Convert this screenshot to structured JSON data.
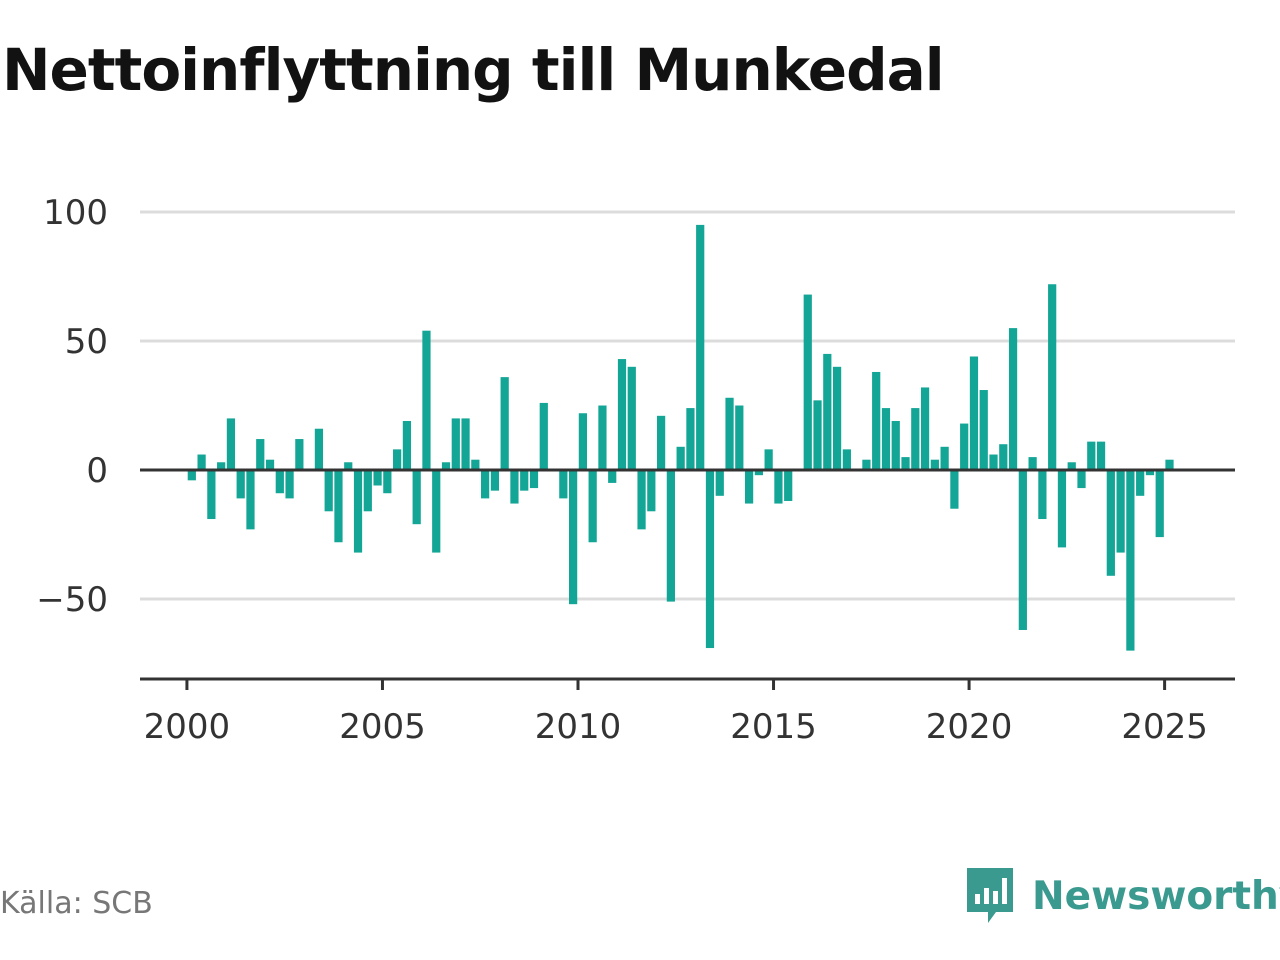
{
  "title": "Nettoinflyttning till Munkedal",
  "source": "Källa: SCB",
  "brand": {
    "name": "Newsworthy",
    "icon": "newsworthy-logo-icon",
    "color": "#3a9a8f"
  },
  "colors": {
    "bar": "#13a596",
    "grid": "#dcdcdc",
    "axis": "#333333"
  },
  "chart_data": {
    "type": "bar",
    "title": "Nettoinflyttning till Munkedal",
    "xlabel": "",
    "ylabel": "",
    "xlim": [
      1998.8,
      2026.8
    ],
    "ylim": [
      -81,
      100
    ],
    "grid": true,
    "legend": "none",
    "x_ticks": [
      2000,
      2005,
      2010,
      2015,
      2020,
      2025
    ],
    "y_ticks": [
      100,
      50,
      0,
      -50
    ],
    "y_tick_labels": [
      "100",
      "50",
      "0",
      "−50"
    ],
    "series": [
      {
        "x": [
          2000.125,
          2000.375,
          2000.625,
          2000.875,
          2001.125,
          2001.375,
          2001.625,
          2001.875,
          2002.125,
          2002.375,
          2002.625,
          2002.875,
          2003.125,
          2003.375,
          2003.625,
          2003.875,
          2004.125,
          2004.375,
          2004.625,
          2004.875,
          2005.125,
          2005.375,
          2005.625,
          2005.875,
          2006.125,
          2006.375,
          2006.625,
          2006.875,
          2007.125,
          2007.375,
          2007.625,
          2007.875,
          2008.125,
          2008.375,
          2008.625,
          2008.875,
          2009.125,
          2009.375,
          2009.625,
          2009.875,
          2010.125,
          2010.375,
          2010.625,
          2010.875,
          2011.125,
          2011.375,
          2011.625,
          2011.875,
          2012.125,
          2012.375,
          2012.625,
          2012.875,
          2013.125,
          2013.375,
          2013.625,
          2013.875,
          2014.125,
          2014.375,
          2014.625,
          2014.875,
          2015.125,
          2015.375,
          2015.625,
          2015.875,
          2016.125,
          2016.375,
          2016.625,
          2016.875,
          2017.125,
          2017.375,
          2017.625,
          2017.875,
          2018.125,
          2018.375,
          2018.625,
          2018.875,
          2019.125,
          2019.375,
          2019.625,
          2019.875,
          2020.125,
          2020.375,
          2020.625,
          2020.875,
          2021.125,
          2021.375,
          2021.625,
          2021.875,
          2022.125,
          2022.375,
          2022.625,
          2022.875,
          2023.125,
          2023.375,
          2023.625,
          2023.875,
          2024.125,
          2024.375,
          2024.625,
          2024.875,
          2025.125,
          2025.375
        ],
        "values": [
          -4,
          6,
          -19,
          3,
          20,
          -11,
          -23,
          12,
          4,
          -9,
          -11,
          12,
          0,
          16,
          -16,
          -28,
          3,
          -32,
          -16,
          -6,
          -9,
          8,
          19,
          -21,
          54,
          -32,
          3,
          20,
          20,
          4,
          -11,
          -8,
          36,
          -13,
          -8,
          -7,
          26,
          0,
          -11,
          -52,
          22,
          -28,
          25,
          -5,
          43,
          40,
          -23,
          -16,
          21,
          -51,
          9,
          24,
          95,
          -69,
          -10,
          28,
          25,
          -13,
          -2,
          8,
          -13,
          -12,
          0,
          68,
          27,
          45,
          40,
          8,
          0,
          4,
          38,
          24,
          19,
          5,
          24,
          32,
          4,
          9,
          -15,
          18,
          44,
          31,
          6,
          10,
          55,
          -62,
          5,
          -19,
          72,
          -30,
          3,
          -7,
          11,
          11,
          -41,
          -32,
          -70,
          -10,
          -2,
          -26,
          4,
          0
        ]
      }
    ]
  }
}
